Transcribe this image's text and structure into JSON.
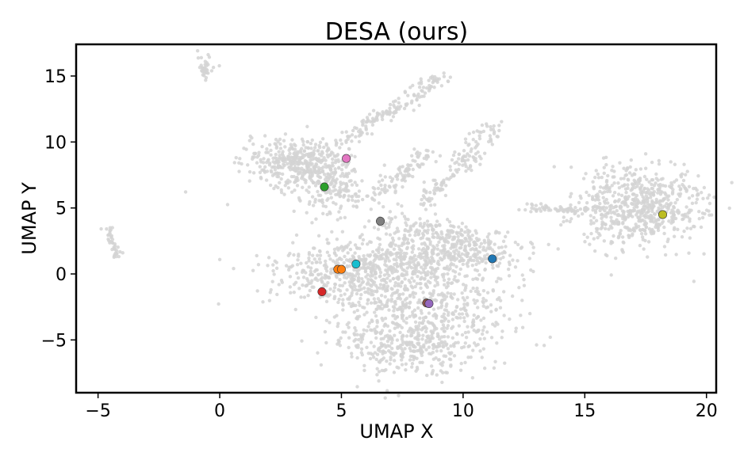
{
  "chart_data": {
    "type": "scatter",
    "title": "DESA (ours)",
    "xlabel": "UMAP X",
    "ylabel": "UMAP Y",
    "xlim": [
      -5.9,
      20.4
    ],
    "ylim": [
      -9.0,
      17.4
    ],
    "xticks": [
      -5,
      0,
      5,
      10,
      15,
      20
    ],
    "yticks": [
      15,
      10,
      5,
      0,
      -5
    ],
    "xtick_labels": [
      "−5",
      "0",
      "5",
      "10",
      "15",
      "20"
    ],
    "ytick_labels": [
      "15",
      "10",
      "5",
      "0",
      "−5"
    ],
    "grid": false,
    "legend": false,
    "background_color": "#d3d3d3",
    "highlights": [
      {
        "x": 5.2,
        "y": 8.75,
        "color": "#e377c2"
      },
      {
        "x": 4.3,
        "y": 6.6,
        "color": "#2ca02c"
      },
      {
        "x": 6.6,
        "y": 4.0,
        "color": "#7f7f7f"
      },
      {
        "x": 18.2,
        "y": 4.5,
        "color": "#bcbd22"
      },
      {
        "x": 5.6,
        "y": 0.75,
        "color": "#17becf"
      },
      {
        "x": 11.2,
        "y": 1.15,
        "color": "#1f77b4"
      },
      {
        "x": 4.85,
        "y": 0.35,
        "color": "#ff7f0e"
      },
      {
        "x": 5.0,
        "y": 0.35,
        "color": "#ff7f0e"
      },
      {
        "x": 4.2,
        "y": -1.35,
        "color": "#d62728"
      },
      {
        "x": 8.5,
        "y": -2.2,
        "color": "#8c564b"
      },
      {
        "x": 8.6,
        "y": -2.25,
        "color": "#9467bd"
      }
    ]
  }
}
